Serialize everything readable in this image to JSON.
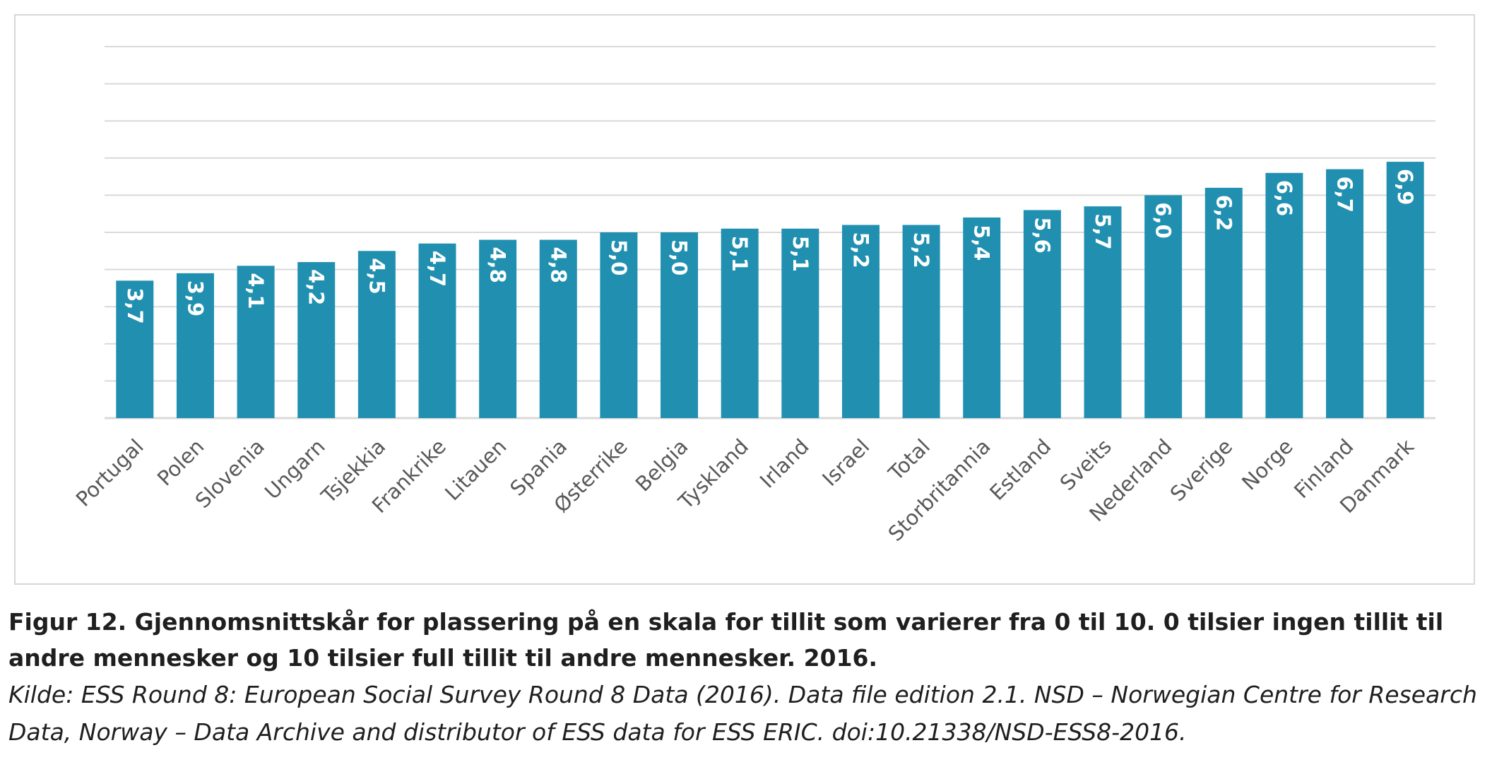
{
  "caption": {
    "title": "Figur 12. Gjennomsnittskår for plassering på en skala for tillit som varierer fra 0 til 10. 0 tilsier ingen tillit til andre mennesker og 10 tilsier full tillit til andre mennesker. 2016.",
    "source": "Kilde: ESS Round 8: European Social Survey Round 8 Data (2016). Data file edition 2.1. NSD – Norwegian Centre for Research Data, Norway – Data Archive and distributor of ESS data for ESS ERIC. doi:10.21338/NSD-ESS8-2016."
  },
  "colors": {
    "bar": "#2190b0",
    "bar_label": "#ffffff",
    "gridline": "#d9d9d9",
    "axis_label": "#595959"
  },
  "chart_data": {
    "type": "bar",
    "title": "",
    "xlabel": "",
    "ylabel": "",
    "ylim": [
      0,
      10
    ],
    "grid": true,
    "y_axis_labels_shown": false,
    "legend": "none",
    "categories": [
      "Portugal",
      "Polen",
      "Slovenia",
      "Ungarn",
      "Tsjekkia",
      "Frankrike",
      "Litauen",
      "Spania",
      "Østerrike",
      "Belgia",
      "Tyskland",
      "Irland",
      "Israel",
      "Total",
      "Storbritannia",
      "Estland",
      "Sveits",
      "Nederland",
      "Sverige",
      "Norge",
      "Finland",
      "Danmark"
    ],
    "values": [
      3.7,
      3.9,
      4.1,
      4.2,
      4.5,
      4.7,
      4.8,
      4.8,
      5.0,
      5.0,
      5.1,
      5.1,
      5.2,
      5.2,
      5.4,
      5.6,
      5.7,
      6.0,
      6.2,
      6.6,
      6.7,
      6.9
    ],
    "data_labels": [
      "3,7",
      "3,9",
      "4,1",
      "4,2",
      "4,5",
      "4,7",
      "4,8",
      "4,8",
      "5,0",
      "5,0",
      "5,1",
      "5,1",
      "5,2",
      "5,2",
      "5,4",
      "5,6",
      "5,7",
      "6,0",
      "6,2",
      "6,6",
      "6,7",
      "6,9"
    ]
  }
}
